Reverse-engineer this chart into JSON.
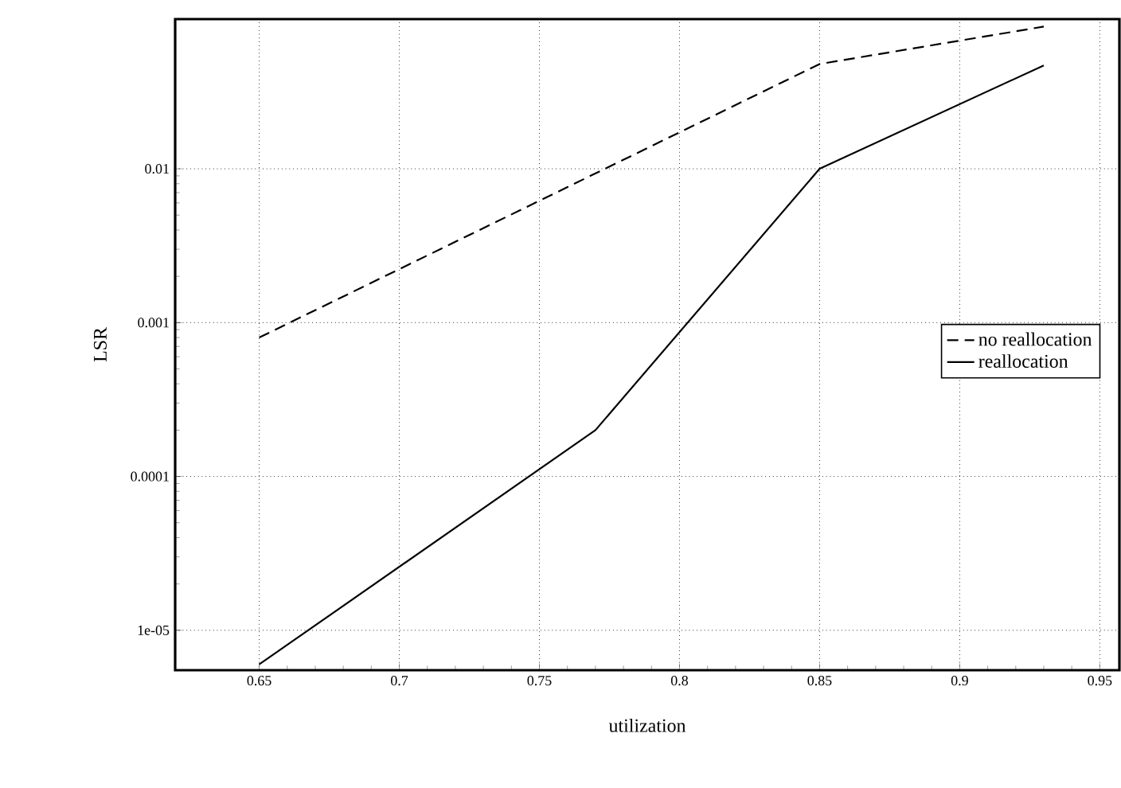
{
  "chart_data": {
    "type": "line",
    "xlabel": "utilization",
    "ylabel": "LSR",
    "log": "y",
    "grid": true,
    "legend": "right",
    "xlim": [
      0.62,
      0.957
    ],
    "ylim": [
      5.5e-06,
      0.094
    ],
    "xticks": [
      0.65,
      0.7,
      0.75,
      0.8,
      0.85,
      0.9,
      0.95
    ],
    "yticks": [
      {
        "value": 1e-05,
        "label": "1e-05"
      },
      {
        "value": 0.0001,
        "label": "0.0001"
      },
      {
        "value": 0.001,
        "label": "0.001"
      },
      {
        "value": 0.01,
        "label": "0.01"
      }
    ],
    "series": [
      {
        "name": "no reallocation",
        "color": "#000000",
        "line_style": "dashed",
        "x": [
          0.65,
          0.85,
          0.93
        ],
        "values": [
          0.0008,
          0.048,
          0.084
        ]
      },
      {
        "name": "reallocation",
        "color": "#000000",
        "line_style": "solid",
        "x": [
          0.65,
          0.77,
          0.85,
          0.93
        ],
        "values": [
          6e-06,
          0.0002,
          0.01,
          0.047
        ]
      }
    ]
  }
}
